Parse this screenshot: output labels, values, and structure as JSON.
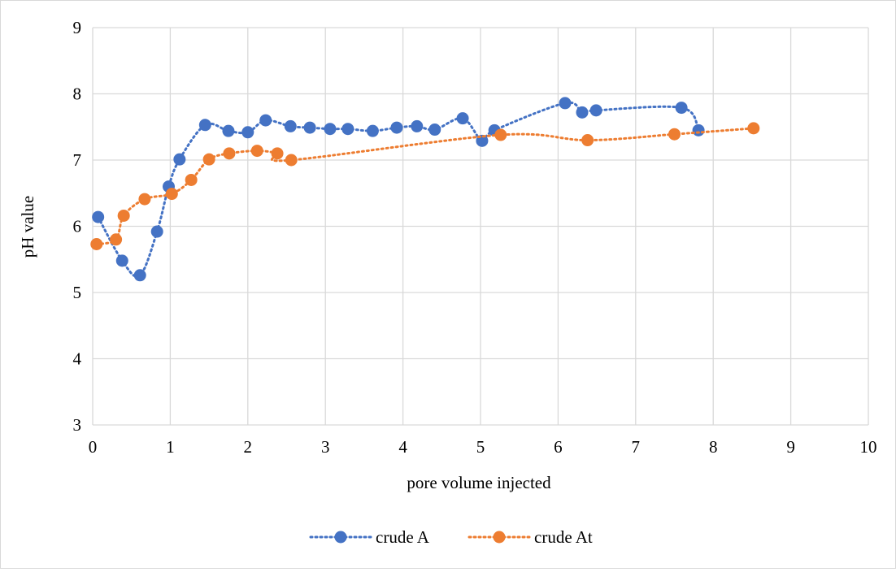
{
  "chart_data": {
    "type": "scatter",
    "title": "",
    "xlabel": "pore volume injected",
    "ylabel": "pH value",
    "xlim": [
      0,
      10
    ],
    "ylim": [
      3,
      9
    ],
    "x_ticks": [
      "0",
      "1",
      "2",
      "3",
      "4",
      "5",
      "6",
      "7",
      "8",
      "9",
      "10"
    ],
    "y_ticks": [
      "3",
      "4",
      "5",
      "6",
      "7",
      "8",
      "9"
    ],
    "grid": true,
    "legend_position": "bottom",
    "series": [
      {
        "name": "crude A",
        "color": "#4472c4",
        "line_style": "dotted smoothed",
        "points": [
          [
            0.07,
            6.14
          ],
          [
            0.38,
            5.48
          ],
          [
            0.61,
            5.26
          ],
          [
            0.83,
            5.92
          ],
          [
            0.98,
            6.6
          ],
          [
            1.12,
            7.01
          ],
          [
            1.45,
            7.53
          ],
          [
            1.75,
            7.44
          ],
          [
            2.0,
            7.42
          ],
          [
            2.23,
            7.6
          ],
          [
            2.55,
            7.51
          ],
          [
            2.8,
            7.49
          ],
          [
            3.06,
            7.47
          ],
          [
            3.29,
            7.47
          ],
          [
            3.61,
            7.44
          ],
          [
            3.92,
            7.49
          ],
          [
            4.18,
            7.51
          ],
          [
            4.41,
            7.46
          ],
          [
            4.77,
            7.63
          ],
          [
            5.02,
            7.29
          ],
          [
            5.18,
            7.45
          ],
          [
            6.09,
            7.86
          ],
          [
            6.31,
            7.72
          ],
          [
            6.49,
            7.75
          ],
          [
            7.59,
            7.79
          ],
          [
            7.81,
            7.45
          ]
        ]
      },
      {
        "name": "crude At",
        "color": "#ed7d31",
        "line_style": "dotted smoothed",
        "points": [
          [
            0.05,
            5.73
          ],
          [
            0.3,
            5.8
          ],
          [
            0.4,
            6.16
          ],
          [
            0.67,
            6.41
          ],
          [
            1.02,
            6.49
          ],
          [
            1.27,
            6.7
          ],
          [
            1.5,
            7.01
          ],
          [
            1.76,
            7.1
          ],
          [
            2.12,
            7.14
          ],
          [
            2.38,
            7.1
          ],
          [
            2.56,
            7.0
          ],
          [
            5.26,
            7.38
          ],
          [
            6.38,
            7.3
          ],
          [
            7.5,
            7.39
          ],
          [
            8.52,
            7.48
          ]
        ]
      }
    ]
  }
}
